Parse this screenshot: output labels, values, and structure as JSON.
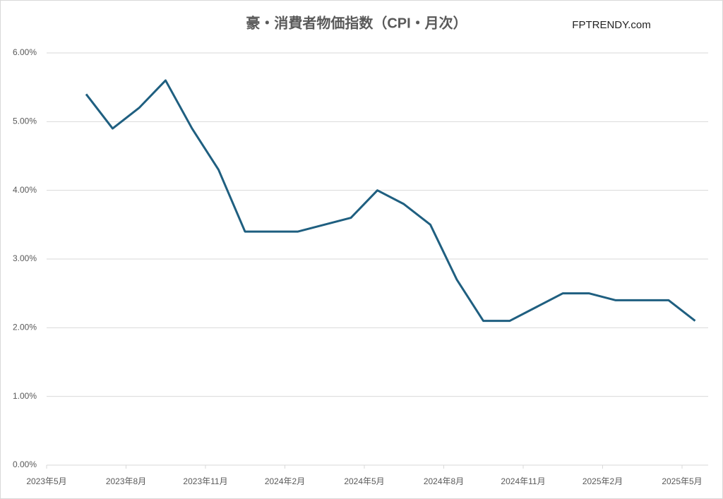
{
  "chart_data": {
    "type": "line",
    "title": "豪・消費者物価指数（CPI・月次）",
    "brand": "FPTRENDY.com",
    "x_labels": [
      "2023年5月",
      "2023年8月",
      "2023年11月",
      "2024年2月",
      "2024年5月",
      "2024年8月",
      "2024年11月",
      "2025年2月",
      "2025年5月"
    ],
    "series": [
      {
        "name": "CPI",
        "color": "#1f5f80",
        "values": [
          5.4,
          4.9,
          5.2,
          5.6,
          4.9,
          4.3,
          3.4,
          3.4,
          3.4,
          3.5,
          3.6,
          4.0,
          3.8,
          3.5,
          2.7,
          2.1,
          2.1,
          2.3,
          2.5,
          2.5,
          2.4,
          2.4,
          2.4,
          2.1
        ]
      }
    ],
    "ylim": [
      0,
      6
    ],
    "yticks": [
      {
        "value": 0,
        "label": "0.00%"
      },
      {
        "value": 1,
        "label": "1.00%"
      },
      {
        "value": 2,
        "label": "2.00%"
      },
      {
        "value": 3,
        "label": "3.00%"
      },
      {
        "value": 4,
        "label": "4.00%"
      },
      {
        "value": 5,
        "label": "5.00%"
      },
      {
        "value": 6,
        "label": "6.00%"
      }
    ],
    "grid": true
  }
}
